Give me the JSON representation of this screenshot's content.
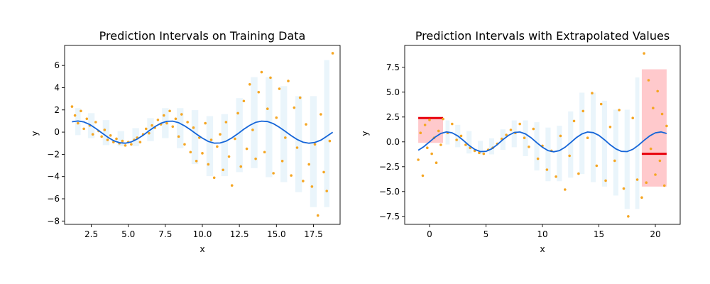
{
  "chart_data": [
    {
      "type": "scatter",
      "title": "Prediction Intervals on Training Data",
      "xlabel": "x",
      "ylabel": "y",
      "xlim": [
        0.7,
        19.3
      ],
      "ylim": [
        -8.3,
        7.8
      ],
      "xticks": [
        2.5,
        5.0,
        7.5,
        10.0,
        12.5,
        15.0,
        17.5
      ],
      "xtick_labels": [
        "2.5",
        "5.0",
        "7.5",
        "10.0",
        "12.5",
        "15.0",
        "17.5"
      ],
      "yticks": [
        -8,
        -6,
        -4,
        -2,
        0,
        2,
        4,
        6
      ],
      "ytick_labels": [
        "−8",
        "−6",
        "−4",
        "−2",
        "0",
        "2",
        "4",
        "6"
      ],
      "grid": false,
      "series": [
        {
          "kind": "scatter",
          "color": "#f5a623",
          "x": [
            1.2,
            1.4,
            1.6,
            1.8,
            2.0,
            2.2,
            2.4,
            2.6,
            2.8,
            3.0,
            3.2,
            3.4,
            3.6,
            3.8,
            4.0,
            4.2,
            4.4,
            4.6,
            4.8,
            5.0,
            5.2,
            5.4,
            5.6,
            5.8,
            6.0,
            6.2,
            6.4,
            6.6,
            6.8,
            7.0,
            7.2,
            7.4,
            7.6,
            7.8,
            8.0,
            8.2,
            8.4,
            8.6,
            8.8,
            9.0,
            9.2,
            9.4,
            9.6,
            9.8,
            10.0,
            10.2,
            10.4,
            10.6,
            10.8,
            11.0,
            11.2,
            11.4,
            11.6,
            11.8,
            12.0,
            12.2,
            12.4,
            12.6,
            12.8,
            13.0,
            13.2,
            13.4,
            13.6,
            13.8,
            14.0,
            14.2,
            14.4,
            14.6,
            14.8,
            15.0,
            15.2,
            15.4,
            15.6,
            15.8,
            16.0,
            16.2,
            16.4,
            16.6,
            16.8,
            17.0,
            17.2,
            17.4,
            17.6,
            17.8,
            18.0,
            18.2,
            18.4,
            18.6,
            18.8
          ],
          "y": [
            2.3,
            1.5,
            0.8,
            1.9,
            0.3,
            1.2,
            0.6,
            -0.2,
            0.9,
            0.1,
            -0.4,
            0.2,
            -0.7,
            -0.3,
            -0.9,
            -0.6,
            -1.0,
            -0.8,
            -1.2,
            -0.9,
            -1.1,
            -0.7,
            -0.5,
            -0.9,
            -0.2,
            0.3,
            -0.1,
            0.6,
            0.4,
            1.1,
            0.7,
            1.5,
            0.8,
            1.9,
            0.5,
            1.2,
            -0.4,
            1.6,
            -1.1,
            0.9,
            -1.8,
            0.4,
            -2.6,
            -0.5,
            -1.9,
            0.8,
            -2.9,
            -0.7,
            -4.1,
            -1.3,
            -0.2,
            -3.4,
            0.9,
            -2.2,
            -4.8,
            -0.6,
            1.7,
            -3.1,
            2.8,
            -1.5,
            4.3,
            0.2,
            -2.4,
            3.6,
            5.4,
            -1.8,
            2.1,
            4.9,
            -3.7,
            1.3,
            3.9,
            -2.6,
            -0.5,
            4.6,
            -3.9,
            2.2,
            -1.4,
            3.1,
            -4.4,
            0.7,
            -2.9,
            -4.9,
            -1.1,
            -7.5,
            1.6,
            -3.6,
            -5.3,
            -0.8,
            7.1
          ]
        },
        {
          "kind": "line",
          "color": "#1565d8",
          "x": [
            1.2,
            1.6,
            2.0,
            2.4,
            2.8,
            3.2,
            3.6,
            4.0,
            4.4,
            4.8,
            5.2,
            5.6,
            6.0,
            6.4,
            6.8,
            7.2,
            7.6,
            8.0,
            8.4,
            8.8,
            9.2,
            9.6,
            10.0,
            10.4,
            10.8,
            11.2,
            11.6,
            12.0,
            12.4,
            12.8,
            13.2,
            13.6,
            14.0,
            14.4,
            14.8,
            15.2,
            15.6,
            16.0,
            16.4,
            16.8,
            17.2,
            17.6,
            18.0,
            18.4,
            18.8
          ],
          "y": [
            0.93,
            1.0,
            0.91,
            0.68,
            0.33,
            -0.06,
            -0.44,
            -0.76,
            -0.95,
            -1.0,
            -0.88,
            -0.63,
            -0.28,
            0.12,
            0.49,
            0.8,
            0.97,
            0.99,
            0.85,
            0.56,
            0.21,
            -0.18,
            -0.54,
            -0.84,
            -0.99,
            -0.98,
            -0.81,
            -0.51,
            -0.14,
            0.26,
            0.61,
            0.88,
            0.99,
            0.95,
            0.76,
            0.44,
            0.07,
            -0.32,
            -0.66,
            -0.9,
            -1.0,
            -0.93,
            -0.72,
            -0.38,
            -0.01
          ]
        },
        {
          "kind": "interval_band",
          "color": "#e8f4fb",
          "x": [
            1.2,
            2.0,
            3.0,
            4.0,
            5.0,
            6.0,
            7.0,
            8.0,
            9.0,
            10.0,
            11.0,
            12.0,
            13.0,
            14.0,
            15.0,
            16.0,
            17.0,
            18.0,
            18.8
          ],
          "lower": [
            -0.3,
            0.1,
            -0.6,
            -1.3,
            -1.4,
            -0.9,
            -0.4,
            -0.6,
            -1.6,
            -3.2,
            -4.4,
            -4.0,
            -3.4,
            -3.6,
            -4.5,
            -5.0,
            -6.0,
            -7.5,
            -4.2
          ],
          "upper": [
            2.4,
            1.9,
            1.2,
            0.1,
            -0.6,
            0.4,
            1.4,
            2.4,
            2.2,
            1.6,
            1.0,
            1.8,
            3.4,
            5.5,
            4.6,
            3.6,
            3.6,
            2.6,
            7.2
          ]
        }
      ]
    },
    {
      "type": "scatter",
      "title": "Prediction Intervals with Extrapolated Values",
      "xlabel": "x",
      "ylabel": "y",
      "xlim": [
        -2.2,
        22.2
      ],
      "ylim": [
        -8.3,
        9.7
      ],
      "xticks": [
        0,
        5,
        10,
        15,
        20
      ],
      "xtick_labels": [
        "0",
        "5",
        "10",
        "15",
        "20"
      ],
      "yticks": [
        -7.5,
        -5.0,
        -2.5,
        0.0,
        2.5,
        5.0,
        7.5
      ],
      "ytick_labels": [
        "−7.5",
        "−5.0",
        "−2.5",
        "0.0",
        "2.5",
        "5.0",
        "7.5"
      ],
      "grid": false,
      "series": [
        {
          "kind": "extrapolation_region",
          "color": "#ffc9cc",
          "regions": [
            {
              "x0": -1.0,
              "x1": 1.2,
              "y0": -0.1,
              "y1": 2.4
            },
            {
              "x0": 18.8,
              "x1": 21.0,
              "y0": -4.5,
              "y1": 7.3
            }
          ]
        },
        {
          "kind": "extrapolation_level",
          "color": "#e8000b",
          "segments": [
            {
              "x0": -1.0,
              "x1": 1.2,
              "y": 2.4
            },
            {
              "x0": 18.8,
              "x1": 21.0,
              "y": -1.2
            }
          ]
        },
        {
          "kind": "scatter",
          "color": "#f5a623",
          "x": [
            -1.0,
            -0.8,
            -0.6,
            -0.4,
            -0.2,
            0.0,
            0.2,
            0.4,
            0.6,
            0.8,
            1.0,
            1.2,
            1.6,
            2.0,
            2.4,
            2.8,
            3.2,
            3.6,
            4.0,
            4.4,
            4.8,
            5.2,
            5.6,
            6.0,
            6.4,
            6.8,
            7.2,
            7.6,
            8.0,
            8.4,
            8.8,
            9.2,
            9.6,
            10.0,
            10.4,
            10.8,
            11.2,
            11.6,
            12.0,
            12.4,
            12.8,
            13.2,
            13.6,
            14.0,
            14.4,
            14.8,
            15.2,
            15.6,
            16.0,
            16.4,
            16.8,
            17.2,
            17.6,
            18.0,
            18.4,
            18.8,
            19.0,
            19.2,
            19.4,
            19.6,
            19.8,
            20.0,
            20.2,
            20.4,
            20.6,
            20.8,
            21.0
          ],
          "y": [
            -1.8,
            0.9,
            -3.4,
            1.7,
            -0.6,
            2.2,
            -1.2,
            0.4,
            -2.1,
            1.1,
            -0.3,
            2.3,
            0.9,
            1.8,
            0.2,
            0.6,
            -0.3,
            -0.6,
            -0.9,
            -1.1,
            -1.2,
            -0.8,
            -0.6,
            -0.2,
            0.3,
            0.7,
            1.2,
            0.9,
            1.8,
            0.4,
            -0.5,
            1.3,
            -1.7,
            -0.4,
            -2.8,
            -0.9,
            -3.5,
            0.6,
            -4.8,
            -1.4,
            2.1,
            -3.2,
            3.1,
            0.4,
            4.9,
            -2.4,
            3.8,
            -3.9,
            1.5,
            -1.9,
            3.2,
            -4.7,
            -7.5,
            2.4,
            -3.8,
            -5.6,
            8.9,
            -4.1,
            6.2,
            -0.7,
            3.4,
            -3.3,
            5.1,
            -1.9,
            2.8,
            -4.4,
            1.6
          ]
        },
        {
          "kind": "line",
          "color": "#1565d8",
          "x": [
            -1.0,
            -0.5,
            0.0,
            0.5,
            1.0,
            1.5,
            2.0,
            2.5,
            3.0,
            3.5,
            4.0,
            4.5,
            5.0,
            5.5,
            6.0,
            6.5,
            7.0,
            7.5,
            8.0,
            8.5,
            9.0,
            9.5,
            10.0,
            10.5,
            11.0,
            11.5,
            12.0,
            12.5,
            13.0,
            13.5,
            14.0,
            14.5,
            15.0,
            15.5,
            16.0,
            16.5,
            17.0,
            17.5,
            18.0,
            18.5,
            19.0,
            19.5,
            20.0,
            20.5,
            21.0
          ],
          "y": [
            -0.84,
            -0.48,
            0.0,
            0.48,
            0.84,
            1.0,
            0.91,
            0.6,
            0.14,
            -0.35,
            -0.76,
            -0.98,
            -0.96,
            -0.71,
            -0.28,
            0.22,
            0.66,
            0.94,
            0.99,
            0.8,
            0.41,
            -0.08,
            -0.54,
            -0.88,
            -1.0,
            -0.88,
            -0.54,
            -0.07,
            0.42,
            0.8,
            0.99,
            0.93,
            0.65,
            0.2,
            -0.29,
            -0.71,
            -0.96,
            -0.98,
            -0.75,
            -0.34,
            0.15,
            0.6,
            0.91,
            1.0,
            0.84
          ]
        },
        {
          "kind": "interval_band",
          "color": "#e8f4fb",
          "x": [
            1.2,
            2.0,
            3.0,
            4.0,
            5.0,
            6.0,
            7.0,
            8.0,
            9.0,
            10.0,
            11.0,
            12.0,
            13.0,
            14.0,
            15.0,
            16.0,
            17.0,
            18.0,
            18.8
          ],
          "lower": [
            -0.3,
            0.1,
            -0.6,
            -1.3,
            -1.4,
            -0.9,
            -0.4,
            -0.6,
            -1.6,
            -3.2,
            -4.4,
            -4.0,
            -3.4,
            -3.6,
            -4.5,
            -5.0,
            -6.0,
            -7.5,
            -4.2
          ],
          "upper": [
            2.4,
            1.9,
            1.2,
            0.1,
            -0.6,
            0.4,
            1.4,
            2.4,
            2.2,
            1.6,
            1.0,
            1.8,
            3.4,
            5.5,
            4.6,
            3.6,
            3.6,
            2.6,
            7.2
          ]
        }
      ]
    }
  ]
}
